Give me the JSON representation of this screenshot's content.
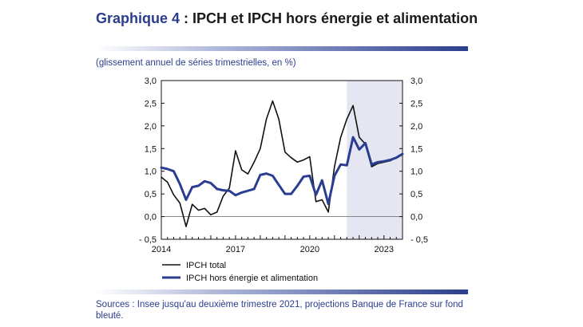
{
  "header": {
    "title_prefix": "Graphique 4",
    "title_rest": " : IPCH et IPCH hors énergie et alimentation",
    "subtitle": "(glissement annuel de séries trimestrielles, en %)"
  },
  "footer": {
    "sources": "Sources : Insee jusqu'au deuxième trimestre 2021, projections Banque de France sur fond bleuté."
  },
  "chart_data": {
    "type": "line",
    "title": "IPCH et IPCH hors énergie et alimentation",
    "x_start": 2014.0,
    "x_step": 0.25,
    "xlim": [
      2014.0,
      2023.75
    ],
    "ylim": [
      -0.5,
      3.0
    ],
    "ytick_labels": [
      "3,0",
      "2,5",
      "2,0",
      "1,5",
      "1,0",
      "0,5",
      "0,0",
      "- 0,5"
    ],
    "ytick_values": [
      3.0,
      2.5,
      2.0,
      1.5,
      1.0,
      0.5,
      0.0,
      -0.5
    ],
    "xtick_labels": [
      "2014",
      "2017",
      "2020",
      "2023"
    ],
    "xtick_values": [
      2014,
      2017,
      2020,
      2023
    ],
    "projection_start": 2021.5,
    "grid": false,
    "legend_position": "bottom",
    "series": [
      {
        "name": "IPCH total",
        "color": "#111111",
        "values": [
          0.87,
          0.76,
          0.48,
          0.3,
          -0.22,
          0.27,
          0.14,
          0.18,
          0.04,
          0.1,
          0.45,
          0.63,
          1.45,
          1.03,
          0.94,
          1.2,
          1.5,
          2.15,
          2.55,
          2.15,
          1.42,
          1.3,
          1.2,
          1.25,
          1.32,
          0.33,
          0.37,
          0.1,
          1.1,
          1.75,
          2.15,
          2.45,
          1.75,
          1.6,
          1.1,
          1.17,
          1.2,
          1.23,
          1.3,
          1.38
        ]
      },
      {
        "name": "IPCH hors énergie et alimentation",
        "color": "#2b3d8f",
        "values": [
          1.08,
          1.05,
          1.0,
          0.72,
          0.37,
          0.65,
          0.68,
          0.78,
          0.74,
          0.61,
          0.58,
          0.57,
          0.47,
          0.53,
          0.57,
          0.61,
          0.92,
          0.95,
          0.9,
          0.7,
          0.5,
          0.5,
          0.68,
          0.88,
          0.9,
          0.48,
          0.8,
          0.28,
          0.9,
          1.15,
          1.13,
          1.75,
          1.48,
          1.62,
          1.15,
          1.2,
          1.22,
          1.25,
          1.3,
          1.38
        ]
      }
    ]
  }
}
